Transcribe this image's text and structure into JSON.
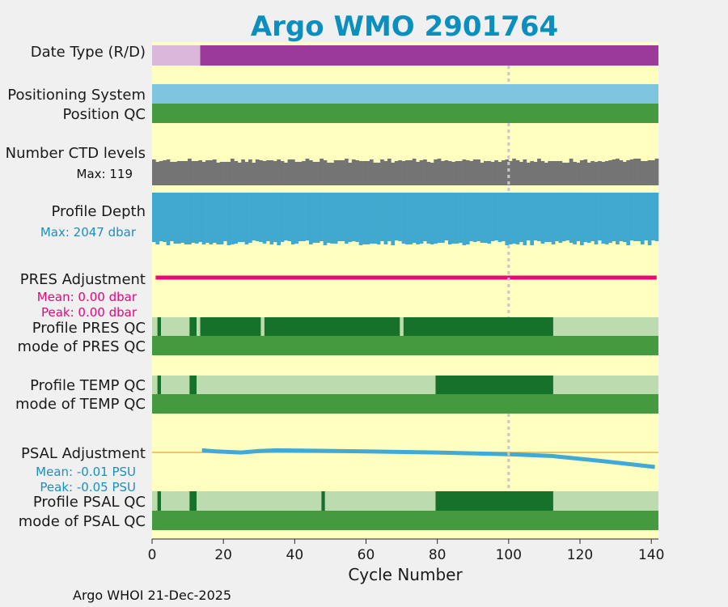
{
  "chart_data": {
    "type": "bar",
    "title": "Argo WMO 2901764",
    "xlabel": "Cycle Number",
    "xlim": [
      0,
      142
    ],
    "xticks": [
      0,
      20,
      40,
      60,
      80,
      100,
      120,
      140
    ],
    "marker_cycle": 100,
    "footer": "Argo WHOI 21-Dec-2025",
    "colors": {
      "background": "#ffffc0",
      "title": "#0a8fbf",
      "date_R": "#dbb8db",
      "date_D": "#9b3a99",
      "positioning": "#80c5e0",
      "qc_good": "#45993f",
      "qc_dark": "#16722a",
      "qc_light": "#bcdbae",
      "ctd": "#747474",
      "depth": "#41a9cf",
      "pres_adj": "#e8087a",
      "psal_adj": "#40a9d6",
      "zero_line": "#f2b440",
      "marker": "#c8c8d2"
    },
    "rows": {
      "date_type": {
        "label": "Date Type (R/D)",
        "segments": [
          {
            "from": 0,
            "to": 13.5,
            "value": "R"
          },
          {
            "from": 13.5,
            "to": 142,
            "value": "D"
          }
        ]
      },
      "positioning_system": {
        "label": "Positioning System"
      },
      "position_qc": {
        "label": "Position QC"
      },
      "ctd_levels": {
        "label": "Number CTD levels",
        "max_text": "Max: 119"
      },
      "profile_depth": {
        "label": "Profile Depth",
        "max_text": "Max: 2047 dbar"
      },
      "pres_adjustment": {
        "label": "PRES Adjustment",
        "mean_text": "Mean: 0.00 dbar",
        "peak_text": "Peak: 0.00 dbar"
      },
      "profile_pres_qc": {
        "label": "Profile PRES QC",
        "segments": [
          {
            "from": 0,
            "to": 1.5,
            "grade": "light"
          },
          {
            "from": 1.5,
            "to": 2.5,
            "grade": "dark"
          },
          {
            "from": 2.5,
            "to": 10.5,
            "grade": "light"
          },
          {
            "from": 10.5,
            "to": 12.5,
            "grade": "dark"
          },
          {
            "from": 12.5,
            "to": 13.5,
            "grade": "light"
          },
          {
            "from": 13.5,
            "to": 30.5,
            "grade": "dark"
          },
          {
            "from": 30.5,
            "to": 31.5,
            "grade": "light"
          },
          {
            "from": 31.5,
            "to": 69.5,
            "grade": "dark"
          },
          {
            "from": 69.5,
            "to": 70.5,
            "grade": "light"
          },
          {
            "from": 70.5,
            "to": 112.5,
            "grade": "dark"
          },
          {
            "from": 112.5,
            "to": 142,
            "grade": "light"
          }
        ]
      },
      "mode_pres_qc": {
        "label": "mode of PRES QC"
      },
      "profile_temp_qc": {
        "label": "Profile TEMP QC",
        "segments": [
          {
            "from": 0,
            "to": 1.5,
            "grade": "light"
          },
          {
            "from": 1.5,
            "to": 2.5,
            "grade": "dark"
          },
          {
            "from": 2.5,
            "to": 10.5,
            "grade": "light"
          },
          {
            "from": 10.5,
            "to": 12.5,
            "grade": "dark"
          },
          {
            "from": 12.5,
            "to": 79.5,
            "grade": "light"
          },
          {
            "from": 79.5,
            "to": 112.5,
            "grade": "dark"
          },
          {
            "from": 112.5,
            "to": 142,
            "grade": "light"
          }
        ]
      },
      "mode_temp_qc": {
        "label": "mode of TEMP QC"
      },
      "psal_adjustment": {
        "label": "PSAL Adjustment",
        "mean_text": "Mean: -0.01 PSU",
        "peak_text": "Peak: -0.05 PSU",
        "curve": {
          "x": [
            14,
            18,
            25,
            30,
            35,
            45,
            60,
            80,
            100,
            112,
            125,
            141
          ],
          "y": [
            -0.001,
            -0.004,
            -0.007,
            -0.003,
            -0.001,
            -0.002,
            -0.004,
            -0.007,
            -0.012,
            -0.017,
            -0.03,
            -0.048
          ]
        }
      },
      "profile_psal_qc": {
        "label": "Profile PSAL QC",
        "segments": [
          {
            "from": 0,
            "to": 1.5,
            "grade": "light"
          },
          {
            "from": 1.5,
            "to": 2.5,
            "grade": "dark"
          },
          {
            "from": 2.5,
            "to": 10.5,
            "grade": "light"
          },
          {
            "from": 10.5,
            "to": 12.5,
            "grade": "dark"
          },
          {
            "from": 12.5,
            "to": 47.5,
            "grade": "light"
          },
          {
            "from": 47.5,
            "to": 48.5,
            "grade": "dark"
          },
          {
            "from": 48.5,
            "to": 79.5,
            "grade": "light"
          },
          {
            "from": 79.5,
            "to": 112.5,
            "grade": "dark"
          },
          {
            "from": 112.5,
            "to": 142,
            "grade": "light"
          }
        ]
      },
      "mode_psal_qc": {
        "label": "mode of PSAL QC"
      }
    }
  }
}
